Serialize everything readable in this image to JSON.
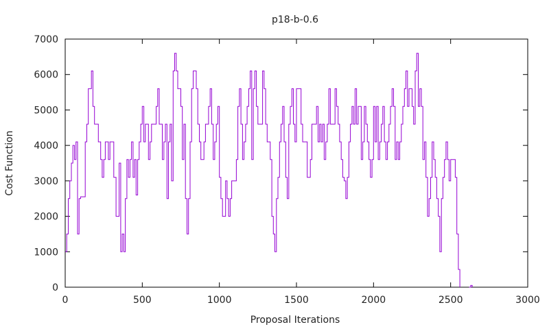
{
  "chart_data": {
    "type": "line",
    "title": "p18-b-0.6",
    "xlabel": "Proposal Iterations",
    "ylabel": "Cost Function",
    "xlim": [
      0,
      3000
    ],
    "ylim": [
      0,
      7000
    ],
    "xticks": [
      0,
      500,
      1000,
      1500,
      2000,
      2500,
      3000
    ],
    "yticks": [
      0,
      1000,
      2000,
      3000,
      4000,
      5000,
      6000,
      7000
    ],
    "grid": false,
    "legend": "none",
    "colors": {
      "series": "#9400D3",
      "axis": "#000000"
    },
    "series": [
      {
        "step": true,
        "x": [
          0,
          10,
          20,
          30,
          40,
          50,
          60,
          70,
          80,
          90,
          100,
          115,
          130,
          140,
          150,
          160,
          170,
          180,
          190,
          200,
          215,
          230,
          240,
          250,
          260,
          270,
          280,
          290,
          300,
          315,
          330,
          340,
          350,
          360,
          370,
          380,
          390,
          400,
          410,
          420,
          430,
          440,
          450,
          460,
          470,
          480,
          490,
          500,
          510,
          520,
          530,
          540,
          550,
          560,
          570,
          580,
          590,
          600,
          610,
          620,
          630,
          640,
          650,
          660,
          670,
          680,
          690,
          700,
          710,
          720,
          730,
          740,
          750,
          760,
          770,
          780,
          790,
          800,
          810,
          820,
          830,
          840,
          850,
          860,
          870,
          880,
          890,
          900,
          910,
          920,
          930,
          940,
          950,
          960,
          970,
          980,
          990,
          1000,
          1010,
          1020,
          1030,
          1040,
          1050,
          1060,
          1070,
          1080,
          1090,
          1100,
          1110,
          1120,
          1130,
          1140,
          1150,
          1160,
          1170,
          1180,
          1190,
          1200,
          1210,
          1220,
          1230,
          1240,
          1250,
          1260,
          1270,
          1280,
          1290,
          1300,
          1310,
          1320,
          1330,
          1340,
          1350,
          1360,
          1370,
          1380,
          1390,
          1400,
          1410,
          1420,
          1430,
          1440,
          1450,
          1460,
          1470,
          1480,
          1490,
          1500,
          1510,
          1520,
          1530,
          1540,
          1550,
          1560,
          1570,
          1580,
          1590,
          1600,
          1610,
          1620,
          1630,
          1640,
          1650,
          1660,
          1670,
          1680,
          1690,
          1700,
          1710,
          1720,
          1730,
          1740,
          1750,
          1760,
          1770,
          1780,
          1790,
          1800,
          1810,
          1820,
          1830,
          1840,
          1850,
          1860,
          1870,
          1880,
          1890,
          1900,
          1910,
          1920,
          1930,
          1940,
          1950,
          1960,
          1970,
          1980,
          1990,
          2000,
          2010,
          2020,
          2030,
          2040,
          2050,
          2060,
          2070,
          2080,
          2090,
          2100,
          2110,
          2120,
          2130,
          2140,
          2150,
          2160,
          2170,
          2180,
          2190,
          2200,
          2210,
          2220,
          2230,
          2240,
          2250,
          2260,
          2270,
          2280,
          2290,
          2300,
          2310,
          2320,
          2330,
          2340,
          2350,
          2360,
          2370,
          2380,
          2390,
          2400,
          2410,
          2420,
          2430,
          2440,
          2450,
          2460,
          2470,
          2480,
          2490,
          2500,
          2510,
          2520,
          2530,
          2540,
          2550,
          2560
        ],
        "y": [
          1000,
          1500,
          2500,
          3000,
          3500,
          4000,
          3600,
          4100,
          1500,
          2500,
          2550,
          2550,
          4100,
          4600,
          5600,
          5600,
          6100,
          5100,
          4600,
          4600,
          4100,
          3600,
          3100,
          3600,
          4100,
          4100,
          3600,
          4100,
          4100,
          3100,
          2000,
          2000,
          3500,
          1000,
          1500,
          1000,
          2500,
          3600,
          3100,
          3600,
          4100,
          3100,
          3600,
          2600,
          3600,
          4100,
          4600,
          5100,
          4100,
          4600,
          4600,
          3600,
          4100,
          4600,
          4600,
          4600,
          5100,
          5600,
          4600,
          4600,
          3600,
          4100,
          4600,
          2500,
          4100,
          4600,
          3000,
          6100,
          6600,
          6100,
          5600,
          5600,
          5100,
          3600,
          4600,
          2500,
          1500,
          2500,
          4100,
          5600,
          6100,
          6100,
          5600,
          4600,
          4100,
          3600,
          3600,
          4100,
          4600,
          4600,
          5100,
          5600,
          4600,
          3600,
          4100,
          4600,
          5100,
          3100,
          2500,
          2000,
          2000,
          3000,
          2500,
          2000,
          2500,
          3000,
          3000,
          3000,
          3600,
          5100,
          5600,
          4600,
          3600,
          4100,
          4600,
          5100,
          5600,
          6100,
          3600,
          5600,
          6100,
          5100,
          4600,
          4600,
          4600,
          6100,
          5600,
          4600,
          4100,
          4100,
          3600,
          2000,
          1500,
          1000,
          2500,
          3100,
          4100,
          4600,
          5100,
          4100,
          3100,
          2500,
          4600,
          5100,
          5600,
          4600,
          4100,
          5600,
          5600,
          5600,
          4600,
          4100,
          4100,
          4100,
          3100,
          3100,
          3600,
          4600,
          4600,
          4600,
          5100,
          4100,
          4600,
          4100,
          4600,
          3600,
          4100,
          4600,
          5600,
          4600,
          4600,
          4600,
          5600,
          5100,
          4600,
          4100,
          3600,
          3100,
          3000,
          2500,
          3100,
          4100,
          4600,
          5100,
          4600,
          5600,
          4600,
          5100,
          5100,
          3600,
          4100,
          5100,
          4600,
          4100,
          3600,
          3100,
          3600,
          5100,
          4100,
          5100,
          3600,
          4100,
          4600,
          5100,
          4100,
          3600,
          4100,
          4600,
          5100,
          5600,
          5100,
          3600,
          4100,
          3600,
          4100,
          4600,
          5100,
          5600,
          6100,
          5100,
          5600,
          5600,
          5100,
          4600,
          6100,
          6600,
          5100,
          5600,
          5100,
          3600,
          4100,
          3100,
          2000,
          2500,
          3100,
          4100,
          3600,
          3100,
          2500,
          2000,
          1000,
          2500,
          3100,
          3600,
          4100,
          3600,
          3000,
          3600,
          3600,
          3600,
          3100,
          1500,
          500,
          0
        ]
      },
      {
        "step": true,
        "x": [
          2620,
          2630,
          2640
        ],
        "y": [
          0,
          50,
          0
        ]
      }
    ]
  }
}
